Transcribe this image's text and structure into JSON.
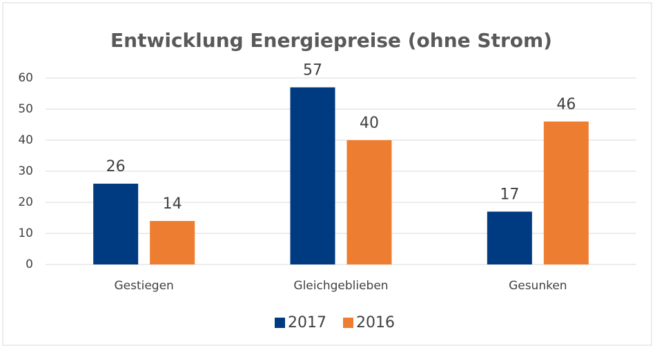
{
  "chart_data": {
    "type": "bar",
    "title": "Entwicklung Energiepreise (ohne Strom)",
    "categories": [
      "Gestiegen",
      "Gleichgeblieben",
      "Gesunken"
    ],
    "series": [
      {
        "name": "2017",
        "color": "#003a80",
        "values": [
          26,
          57,
          17
        ]
      },
      {
        "name": "2016",
        "color": "#ed7d31",
        "values": [
          14,
          40,
          46
        ]
      }
    ],
    "ylim": [
      0,
      60
    ],
    "yticks": [
      0,
      10,
      20,
      30,
      40,
      50,
      60
    ],
    "grid": true,
    "legend": "bottom"
  }
}
